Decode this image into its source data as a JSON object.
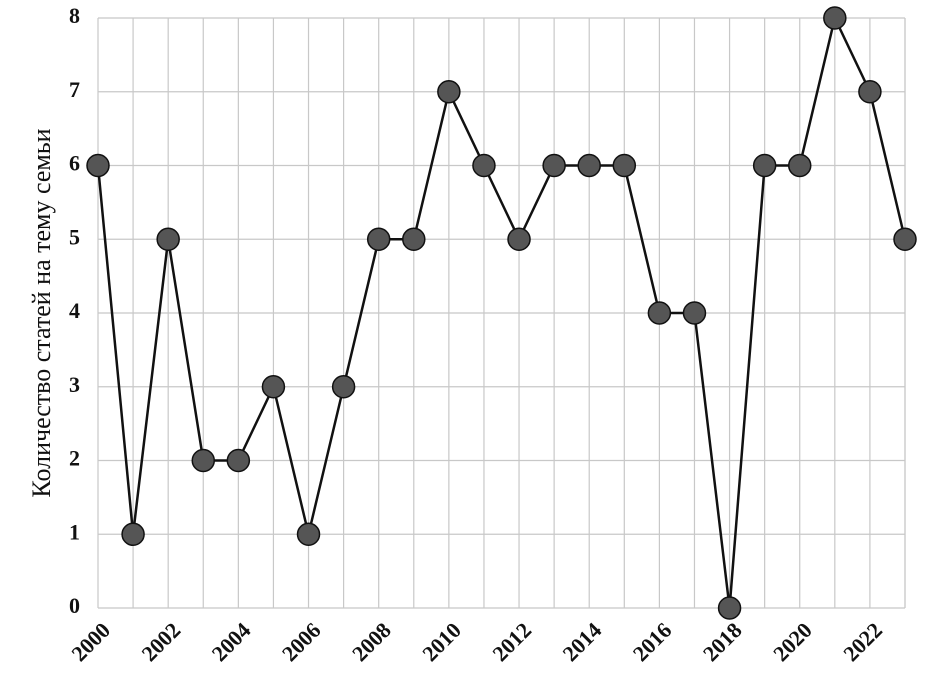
{
  "chart_data": {
    "type": "line",
    "y_label": "Количество статей на тему семьи",
    "x": [
      2000,
      2001,
      2002,
      2003,
      2004,
      2005,
      2006,
      2007,
      2008,
      2009,
      2010,
      2011,
      2012,
      2013,
      2014,
      2015,
      2016,
      2017,
      2018,
      2019,
      2020,
      2021,
      2022,
      2023
    ],
    "series": [
      {
        "color": "#555555",
        "values": [
          6,
          1,
          5,
          2,
          2,
          3,
          1,
          3,
          5,
          5,
          7,
          6,
          5,
          6,
          6,
          6,
          4,
          4,
          0,
          6,
          6,
          8,
          7,
          5
        ]
      }
    ],
    "xlim": [
      2000,
      2023
    ],
    "xticks": [
      2000,
      2002,
      2004,
      2006,
      2008,
      2010,
      2012,
      2014,
      2016,
      2018,
      2020,
      2022
    ],
    "ylim": [
      0,
      8
    ],
    "yticks": [
      0,
      1,
      2,
      3,
      4,
      5,
      6,
      7,
      8
    ],
    "grid": true
  }
}
